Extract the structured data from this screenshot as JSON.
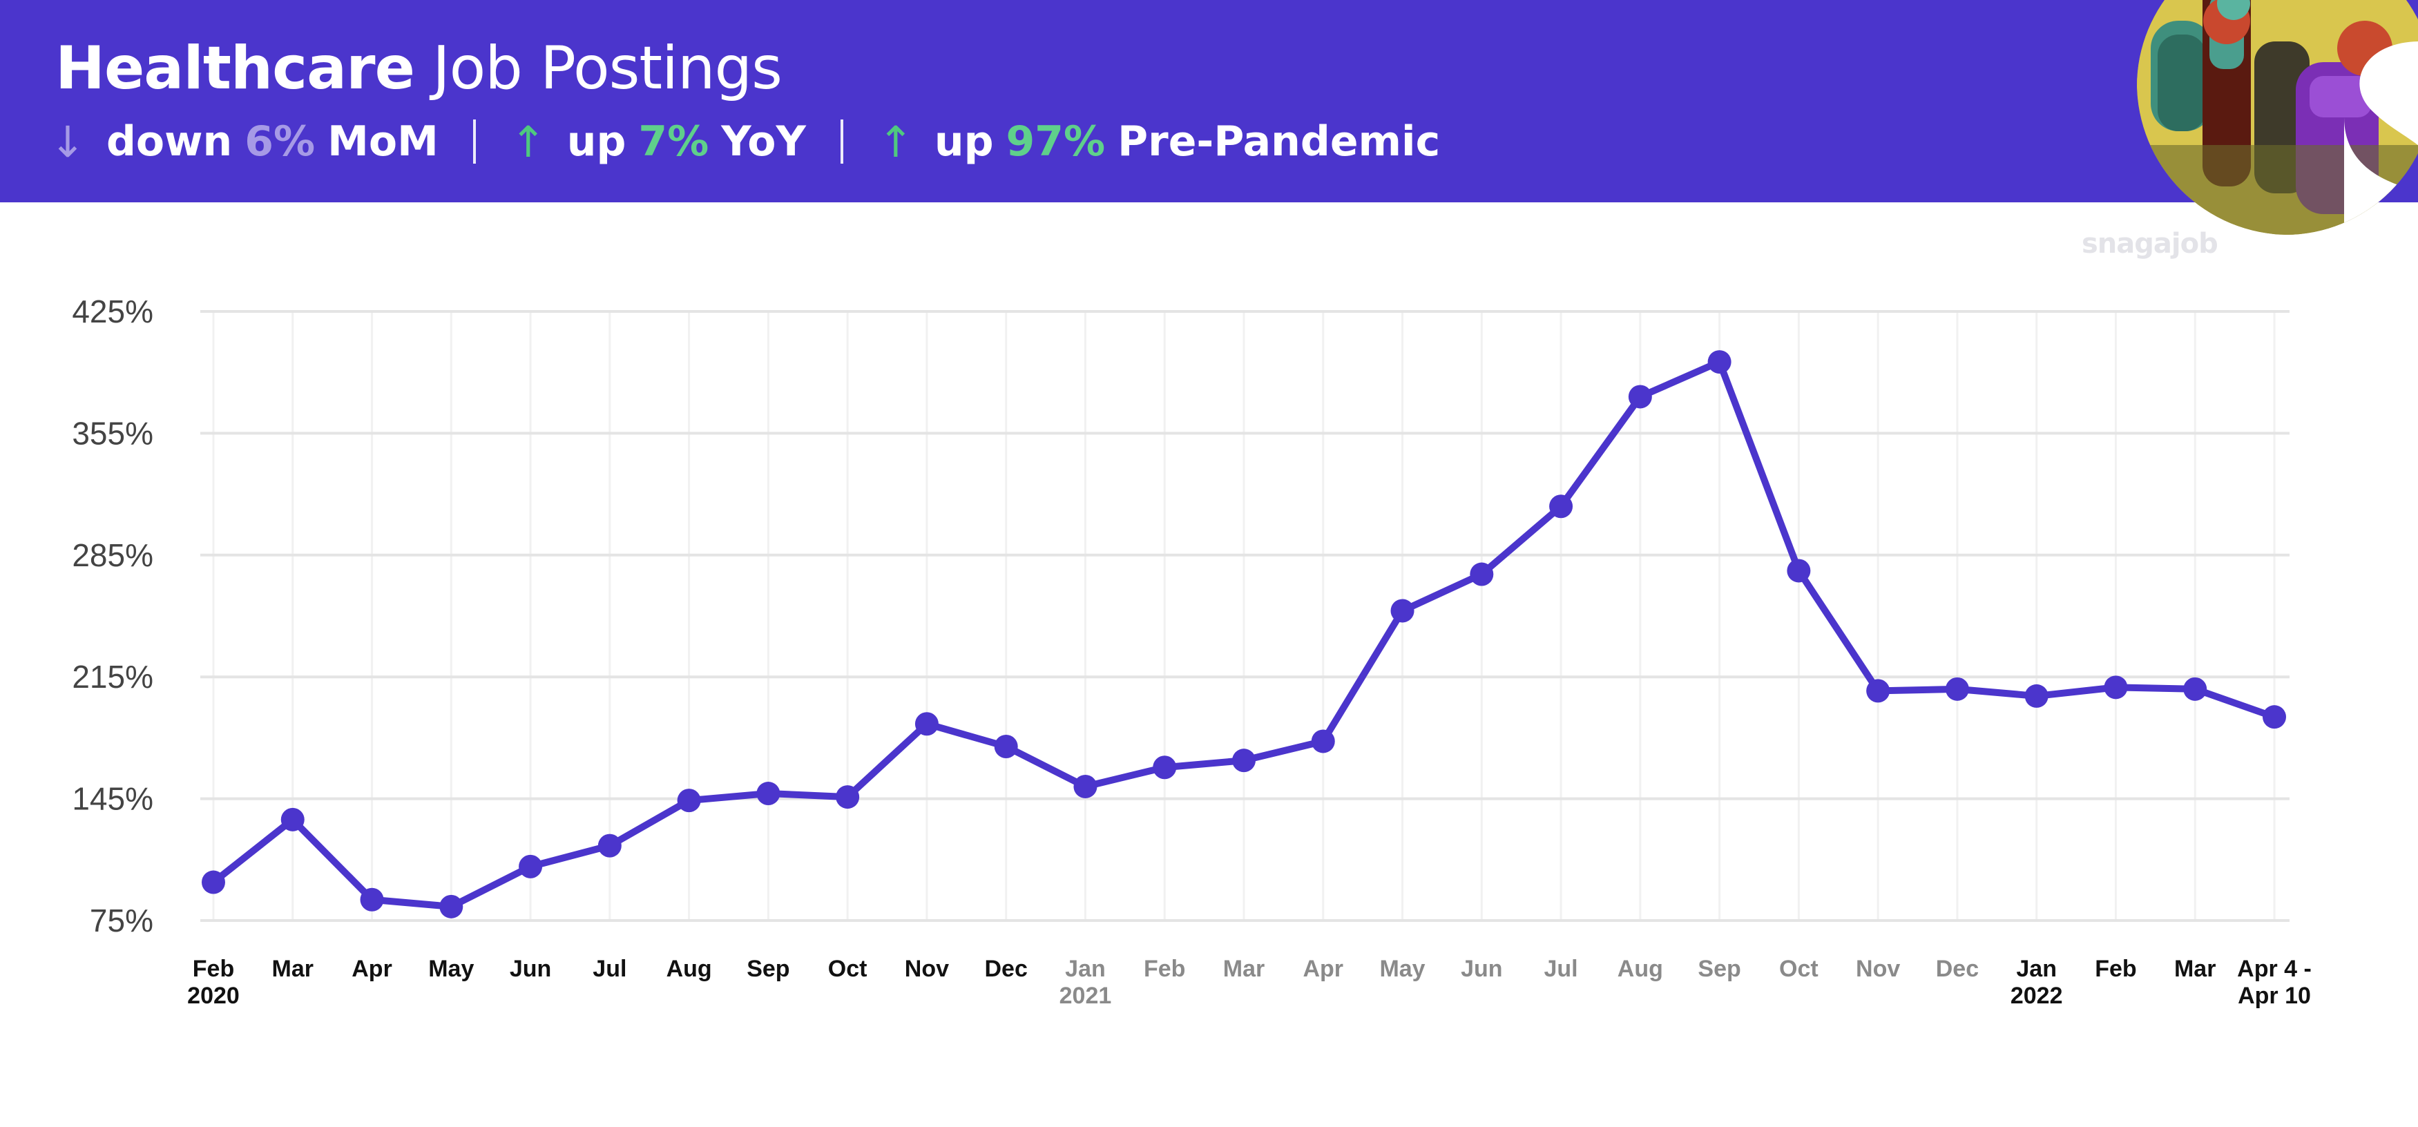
{
  "header": {
    "title_bold": "Healthcare",
    "title_light": "Job Postings",
    "stats": [
      {
        "direction": "down",
        "arrow": "↓",
        "word": "down",
        "pct": "6%",
        "label": "MoM"
      },
      {
        "direction": "up",
        "arrow": "↑",
        "word": "up",
        "pct": "7%",
        "label": "YoY"
      },
      {
        "direction": "up",
        "arrow": "↑",
        "word": "up",
        "pct": "97%",
        "label": "Pre-Pandemic"
      }
    ]
  },
  "brand": "snagajob",
  "colors": {
    "header_bg": "#4b35cc",
    "line": "#4b35cc",
    "up": "#5fd08b",
    "down": "#a69ae6",
    "tick_dark": "#111111",
    "tick_muted": "#8a8a8a",
    "grid": "#e4e4e4"
  },
  "chart_data": {
    "type": "line",
    "title": "",
    "xlabel": "",
    "ylabel": "",
    "ylim": [
      75,
      425
    ],
    "yticks": [
      "425%",
      "355%",
      "285%",
      "215%",
      "145%",
      "75%"
    ],
    "ytick_values": [
      425,
      355,
      285,
      215,
      145,
      75
    ],
    "grid": true,
    "categories": [
      {
        "line1": "Feb",
        "line2": "2020",
        "muted": false
      },
      {
        "line1": "Mar",
        "line2": "",
        "muted": false
      },
      {
        "line1": "Apr",
        "line2": "",
        "muted": false
      },
      {
        "line1": "May",
        "line2": "",
        "muted": false
      },
      {
        "line1": "Jun",
        "line2": "",
        "muted": false
      },
      {
        "line1": "Jul",
        "line2": "",
        "muted": false
      },
      {
        "line1": "Aug",
        "line2": "",
        "muted": false
      },
      {
        "line1": "Sep",
        "line2": "",
        "muted": false
      },
      {
        "line1": "Oct",
        "line2": "",
        "muted": false
      },
      {
        "line1": "Nov",
        "line2": "",
        "muted": false
      },
      {
        "line1": "Dec",
        "line2": "",
        "muted": false
      },
      {
        "line1": "Jan",
        "line2": "2021",
        "muted": true
      },
      {
        "line1": "Feb",
        "line2": "",
        "muted": true
      },
      {
        "line1": "Mar",
        "line2": "",
        "muted": true
      },
      {
        "line1": "Apr",
        "line2": "",
        "muted": true
      },
      {
        "line1": "May",
        "line2": "",
        "muted": true
      },
      {
        "line1": "Jun",
        "line2": "",
        "muted": true
      },
      {
        "line1": "Jul",
        "line2": "",
        "muted": true
      },
      {
        "line1": "Aug",
        "line2": "",
        "muted": true
      },
      {
        "line1": "Sep",
        "line2": "",
        "muted": true
      },
      {
        "line1": "Oct",
        "line2": "",
        "muted": true
      },
      {
        "line1": "Nov",
        "line2": "",
        "muted": true
      },
      {
        "line1": "Dec",
        "line2": "",
        "muted": true
      },
      {
        "line1": "Jan",
        "line2": "2022",
        "muted": false
      },
      {
        "line1": "Feb",
        "line2": "",
        "muted": false
      },
      {
        "line1": "Mar",
        "line2": "",
        "muted": false
      },
      {
        "line1": "Apr 4 -",
        "line2": "Apr 10",
        "muted": false
      }
    ],
    "series": [
      {
        "values": [
          97,
          133,
          87,
          83,
          106,
          118,
          144,
          148,
          146,
          188,
          175,
          152,
          163,
          167,
          178,
          253,
          274,
          313,
          376,
          396,
          276,
          207,
          208,
          204,
          209,
          208,
          192
        ]
      }
    ]
  }
}
